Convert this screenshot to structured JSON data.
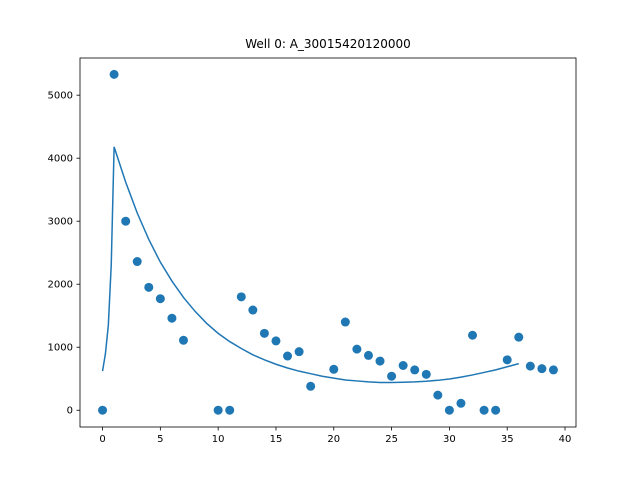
{
  "chart_data": {
    "type": "scatter",
    "title": "Well 0: A_30015420120000",
    "xlabel": "",
    "ylabel": "",
    "xlim": [
      -1.95,
      40.95
    ],
    "ylim": [
      -266,
      5590
    ],
    "xticks": [
      0,
      5,
      10,
      15,
      20,
      25,
      30,
      35,
      40
    ],
    "yticks": [
      0,
      1000,
      2000,
      3000,
      4000,
      5000
    ],
    "grid": false,
    "legend": "none",
    "colors": {
      "series": "#1f77b4",
      "axes": "#000000"
    },
    "series": [
      {
        "type": "scatter",
        "x": [
          0,
          1,
          2,
          3,
          4,
          5,
          6,
          7,
          10,
          11,
          12,
          13,
          14,
          15,
          16,
          17,
          18,
          20,
          21,
          22,
          23,
          24,
          25,
          26,
          27,
          28,
          29,
          30,
          31,
          32,
          33,
          34,
          35,
          36,
          37,
          38,
          39
        ],
        "y": [
          0,
          5330,
          3000,
          2360,
          1950,
          1770,
          1460,
          1110,
          0,
          0,
          1800,
          1590,
          1220,
          1100,
          860,
          930,
          380,
          650,
          1400,
          970,
          870,
          780,
          540,
          710,
          640,
          570,
          240,
          0,
          110,
          1190,
          0,
          0,
          800,
          1160,
          700,
          660,
          640
        ]
      },
      {
        "type": "line",
        "x": [
          0,
          0.25,
          0.5,
          0.75,
          1,
          2,
          3,
          4,
          5,
          6,
          7,
          8,
          9,
          10,
          11,
          12,
          13,
          14,
          15,
          16,
          17,
          18,
          19,
          20,
          21,
          22,
          23,
          24,
          25,
          26,
          27,
          28,
          29,
          30,
          31,
          32,
          33,
          34,
          35,
          36
        ],
        "y": [
          620,
          900,
          1350,
          2300,
          4180,
          3620,
          3130,
          2710,
          2350,
          2050,
          1790,
          1570,
          1380,
          1220,
          1090,
          980,
          880,
          800,
          730,
          670,
          620,
          580,
          540,
          510,
          480,
          465,
          450,
          440,
          440,
          445,
          450,
          460,
          475,
          495,
          525,
          560,
          600,
          640,
          690,
          740
        ]
      }
    ]
  }
}
